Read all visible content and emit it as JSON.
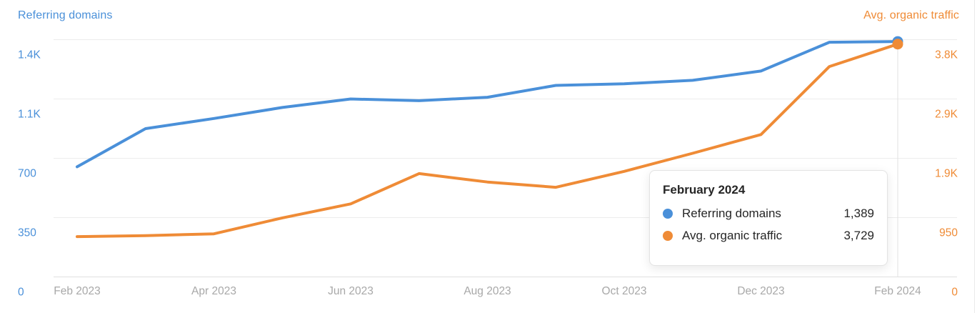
{
  "chart_data": {
    "type": "line",
    "x": [
      "Feb 2023",
      "Mar 2023",
      "Apr 2023",
      "May 2023",
      "Jun 2023",
      "Jul 2023",
      "Aug 2023",
      "Sep 2023",
      "Oct 2023",
      "Nov 2023",
      "Dec 2023",
      "Jan 2024",
      "Feb 2024"
    ],
    "x_ticks": [
      {
        "index": 0,
        "label": "Feb 2023"
      },
      {
        "index": 2,
        "label": "Apr 2023"
      },
      {
        "index": 4,
        "label": "Jun 2023"
      },
      {
        "index": 6,
        "label": "Aug 2023"
      },
      {
        "index": 8,
        "label": "Oct 2023"
      },
      {
        "index": 10,
        "label": "Dec 2023"
      },
      {
        "index": 12,
        "label": "Feb 2024"
      }
    ],
    "series": [
      {
        "name": "Referring domains",
        "axis": "left",
        "color": "#4a90d9",
        "values": [
          650,
          875,
          935,
          1000,
          1050,
          1040,
          1060,
          1130,
          1140,
          1160,
          1215,
          1385,
          1389
        ],
        "end_dot": true
      },
      {
        "name": "Avg. organic traffic",
        "axis": "right",
        "color": "#ef8b36",
        "values": [
          645,
          660,
          690,
          945,
          1170,
          1655,
          1520,
          1435,
          1690,
          1980,
          2280,
          3370,
          3729
        ],
        "end_dot": true
      }
    ],
    "axes": {
      "left": {
        "title": "Referring domains",
        "color": "#4a90d9",
        "min": 0,
        "max": 1400,
        "ticks": [
          {
            "value": 0,
            "label": "0"
          },
          {
            "value": 350,
            "label": "350"
          },
          {
            "value": 700,
            "label": "700"
          },
          {
            "value": 1050,
            "label": "1.1K"
          },
          {
            "value": 1400,
            "label": "1.4K"
          }
        ]
      },
      "right": {
        "title": "Avg. organic traffic",
        "color": "#ef8b36",
        "min": 0,
        "max": 3800,
        "ticks": [
          {
            "value": 0,
            "label": "0"
          },
          {
            "value": 950,
            "label": "950"
          },
          {
            "value": 1900,
            "label": "1.9K"
          },
          {
            "value": 2850,
            "label": "2.9K"
          },
          {
            "value": 3800,
            "label": "3.8K"
          }
        ]
      }
    },
    "grid": true,
    "legend_position": "top",
    "hover": {
      "index": 12
    }
  },
  "tooltip": {
    "title": "February 2024",
    "rows": [
      {
        "label": "Referring domains",
        "value": "1,389",
        "color": "#4a90d9"
      },
      {
        "label": "Avg. organic traffic",
        "value": "3,729",
        "color": "#ef8b36"
      }
    ]
  },
  "colors": {
    "grid_line": "#ececec",
    "axis_line": "#e0e0e0",
    "crosshair_line": "#e0e0e0",
    "x_label": "#a8a8a8",
    "panel_border": "#eaeaea"
  }
}
